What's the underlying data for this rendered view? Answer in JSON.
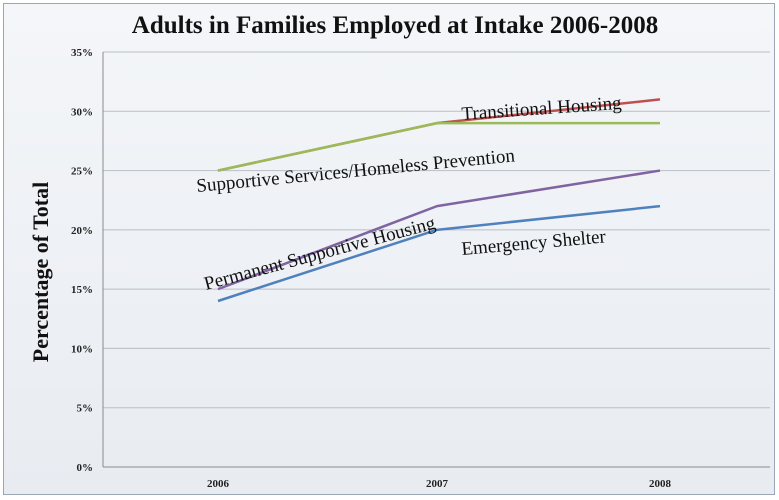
{
  "chart_data": {
    "type": "line",
    "title": "Adults in Families Employed at Intake 2006-2008",
    "xlabel": "",
    "ylabel": "Percentage of Total",
    "categories": [
      "2006",
      "2007",
      "2008"
    ],
    "ylim": [
      0,
      35
    ],
    "yticks": [
      "0%",
      "5%",
      "10%",
      "15%",
      "20%",
      "25%",
      "30%",
      "35%"
    ],
    "grid": true,
    "legend": "none",
    "series": [
      {
        "name": "Transitional Housing",
        "values": [
          25,
          29,
          31
        ],
        "color": "#c0504d"
      },
      {
        "name": "Supportive Services/Homeless Prevention",
        "values": [
          25,
          29,
          29
        ],
        "color": "#9bbb59"
      },
      {
        "name": "Permanent Supportive Housing",
        "values": [
          15,
          22,
          25
        ],
        "color": "#8064a2"
      },
      {
        "name": "Emergency Shelter",
        "values": [
          14,
          20,
          22
        ],
        "color": "#4f81bd"
      }
    ]
  }
}
